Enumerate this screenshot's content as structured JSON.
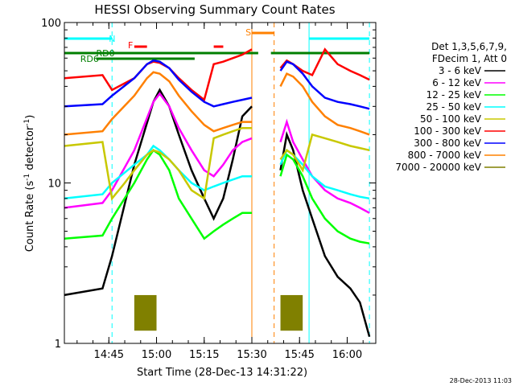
{
  "chart_data": {
    "type": "line",
    "title": "HESSI Observing Summary Count Rates",
    "xlabel": "Start Time (28-Dec-13 14:31:22)",
    "ylabel_main": "Count Rate (s",
    "ylabel_sup1": "-1",
    "ylabel_mid": " detector",
    "ylabel_sup2": "-1",
    "ylabel_end": ")",
    "yscale": "log",
    "ylim": [
      1,
      100
    ],
    "y_ticks": [
      "1",
      "10",
      "100"
    ],
    "xlim_minutes_after_1431": [
      0,
      98
    ],
    "x_ticks": [
      {
        "label": "14:45",
        "m": 14
      },
      {
        "label": "15:00",
        "m": 29
      },
      {
        "label": "15:15",
        "m": 44
      },
      {
        "label": "15:30",
        "m": 59
      },
      {
        "label": "15:45",
        "m": 74
      },
      {
        "label": "16:00",
        "m": 89
      }
    ],
    "timestamp": "28-Dec-2013 11:03",
    "legend": {
      "header": [
        "Det 1,3,5,6,7,9,",
        "FDecim 1, Att 0"
      ],
      "entries": [
        {
          "label": "3 - 6 keV",
          "color": "#000000"
        },
        {
          "label": "6 - 12 keV",
          "color": "#ff00ff"
        },
        {
          "label": "12 - 25 keV",
          "color": "#00ff00"
        },
        {
          "label": "25 - 50 keV",
          "color": "#00ffff"
        },
        {
          "label": "50 - 100 keV",
          "color": "#c8c800"
        },
        {
          "label": "100 - 300 keV",
          "color": "#ff0000"
        },
        {
          "label": "300 - 800 keV",
          "color": "#0000ff"
        },
        {
          "label": "800 - 7000 keV",
          "color": "#ff8000"
        },
        {
          "label": "7000 - 20000 keV",
          "color": "#808000"
        }
      ]
    },
    "flags": [
      {
        "label": "N",
        "color": "#00ffff",
        "segments": [
          [
            0,
            15
          ],
          [
            77,
            96
          ]
        ]
      },
      {
        "label": "RD0",
        "color": "#007f00",
        "segments": [
          [
            0,
            61
          ],
          [
            65,
            96
          ]
        ]
      },
      {
        "label": "RD6",
        "color": "#007f00",
        "segments": [
          [
            10,
            41
          ]
        ]
      },
      {
        "label": "F",
        "color": "#ff0000",
        "segments": [
          [
            22,
            26
          ],
          [
            47,
            50
          ]
        ]
      },
      {
        "label": "S",
        "color": "#ff8000",
        "segments": [
          [
            59,
            66
          ]
        ]
      }
    ],
    "vlines": [
      {
        "m": 15,
        "color": "#00ffff",
        "dash": true
      },
      {
        "m": 77,
        "color": "#00ffff",
        "dash": false
      },
      {
        "m": 96,
        "color": "#00ffff",
        "dash": true
      },
      {
        "m": 59,
        "color": "#ff8000",
        "dash": false
      },
      {
        "m": 66,
        "color": "#ff8000",
        "dash": true
      }
    ],
    "segments": [
      [
        0,
        59
      ],
      [
        68,
        96
      ]
    ],
    "series": [
      {
        "name": "3 - 6 keV",
        "color": "#000000",
        "values": [
          [
            0,
            2
          ],
          [
            12,
            2.2
          ],
          [
            15,
            3.5
          ],
          [
            22,
            13
          ],
          [
            28,
            32
          ],
          [
            30,
            38
          ],
          [
            33,
            30
          ],
          [
            36,
            20
          ],
          [
            40,
            12
          ],
          [
            44,
            8
          ],
          [
            47,
            6
          ],
          [
            50,
            8
          ],
          [
            53,
            14
          ],
          [
            56,
            26
          ],
          [
            59,
            30
          ],
          [
            68,
            12
          ],
          [
            70,
            20
          ],
          [
            72,
            16
          ],
          [
            75,
            9
          ],
          [
            78,
            6
          ],
          [
            82,
            3.5
          ],
          [
            86,
            2.6
          ],
          [
            90,
            2.2
          ],
          [
            93,
            1.8
          ],
          [
            96,
            1.1
          ]
        ]
      },
      {
        "name": "6 - 12 keV",
        "color": "#ff00ff",
        "values": [
          [
            0,
            7
          ],
          [
            12,
            7.5
          ],
          [
            15,
            9
          ],
          [
            22,
            16
          ],
          [
            28,
            32
          ],
          [
            30,
            36
          ],
          [
            33,
            30
          ],
          [
            36,
            22
          ],
          [
            40,
            16
          ],
          [
            44,
            12
          ],
          [
            47,
            11
          ],
          [
            50,
            13
          ],
          [
            53,
            16
          ],
          [
            56,
            18
          ],
          [
            59,
            19
          ],
          [
            68,
            18
          ],
          [
            70,
            24
          ],
          [
            72,
            18
          ],
          [
            75,
            14
          ],
          [
            78,
            11
          ],
          [
            82,
            9
          ],
          [
            86,
            8
          ],
          [
            90,
            7.5
          ],
          [
            93,
            7
          ],
          [
            96,
            6.5
          ]
        ]
      },
      {
        "name": "12 - 25 keV",
        "color": "#00ff00",
        "values": [
          [
            0,
            4.5
          ],
          [
            12,
            4.7
          ],
          [
            15,
            6
          ],
          [
            22,
            10
          ],
          [
            26,
            14
          ],
          [
            28,
            16
          ],
          [
            30,
            15
          ],
          [
            33,
            12
          ],
          [
            36,
            8
          ],
          [
            40,
            6
          ],
          [
            44,
            4.5
          ],
          [
            47,
            5
          ],
          [
            50,
            5.5
          ],
          [
            53,
            6
          ],
          [
            56,
            6.5
          ],
          [
            59,
            6.5
          ],
          [
            68,
            11
          ],
          [
            70,
            15
          ],
          [
            72,
            14
          ],
          [
            75,
            11
          ],
          [
            78,
            8
          ],
          [
            82,
            6
          ],
          [
            86,
            5
          ],
          [
            90,
            4.5
          ],
          [
            93,
            4.3
          ],
          [
            96,
            4.2
          ]
        ]
      },
      {
        "name": "25 - 50 keV",
        "color": "#00ffff",
        "values": [
          [
            0,
            8
          ],
          [
            12,
            8.5
          ],
          [
            15,
            10
          ],
          [
            22,
            13
          ],
          [
            26,
            15
          ],
          [
            28,
            17
          ],
          [
            30,
            16
          ],
          [
            33,
            14
          ],
          [
            36,
            12
          ],
          [
            40,
            10
          ],
          [
            44,
            9
          ],
          [
            47,
            9.5
          ],
          [
            50,
            10
          ],
          [
            53,
            10.5
          ],
          [
            56,
            11
          ],
          [
            59,
            11
          ],
          [
            68,
            13
          ],
          [
            70,
            16
          ],
          [
            72,
            15
          ],
          [
            75,
            13
          ],
          [
            78,
            11
          ],
          [
            82,
            9.5
          ],
          [
            86,
            9
          ],
          [
            90,
            8.5
          ],
          [
            93,
            8.2
          ],
          [
            96,
            8
          ]
        ]
      },
      {
        "name": "50 - 100 keV",
        "color": "#c8c800",
        "values": [
          [
            0,
            17
          ],
          [
            12,
            18
          ],
          [
            15,
            8
          ],
          [
            19,
            10
          ],
          [
            22,
            12
          ],
          [
            26,
            15
          ],
          [
            28,
            16
          ],
          [
            30,
            15.5
          ],
          [
            33,
            14
          ],
          [
            36,
            12
          ],
          [
            40,
            9
          ],
          [
            44,
            8
          ],
          [
            47,
            19
          ],
          [
            50,
            20
          ],
          [
            53,
            21
          ],
          [
            56,
            22
          ],
          [
            59,
            22
          ],
          [
            68,
            14
          ],
          [
            70,
            16
          ],
          [
            72,
            15
          ],
          [
            75,
            12
          ],
          [
            78,
            20
          ],
          [
            82,
            19
          ],
          [
            86,
            18
          ],
          [
            90,
            17
          ],
          [
            93,
            16.5
          ],
          [
            96,
            16
          ]
        ]
      },
      {
        "name": "100 - 300 keV",
        "color": "#ff0000",
        "values": [
          [
            0,
            45
          ],
          [
            12,
            47
          ],
          [
            15,
            38
          ],
          [
            22,
            45
          ],
          [
            26,
            55
          ],
          [
            28,
            57
          ],
          [
            30,
            56
          ],
          [
            33,
            52
          ],
          [
            36,
            45
          ],
          [
            40,
            38
          ],
          [
            44,
            33
          ],
          [
            47,
            55
          ],
          [
            50,
            57
          ],
          [
            53,
            60
          ],
          [
            56,
            63
          ],
          [
            59,
            68
          ],
          [
            68,
            52
          ],
          [
            70,
            58
          ],
          [
            72,
            55
          ],
          [
            75,
            50
          ],
          [
            78,
            47
          ],
          [
            82,
            68
          ],
          [
            86,
            55
          ],
          [
            90,
            50
          ],
          [
            93,
            47
          ],
          [
            96,
            44
          ]
        ]
      },
      {
        "name": "300 - 800 keV",
        "color": "#0000ff",
        "values": [
          [
            0,
            30
          ],
          [
            12,
            31
          ],
          [
            15,
            35
          ],
          [
            22,
            45
          ],
          [
            26,
            55
          ],
          [
            28,
            58
          ],
          [
            30,
            57
          ],
          [
            33,
            52
          ],
          [
            36,
            44
          ],
          [
            40,
            37
          ],
          [
            44,
            32
          ],
          [
            47,
            30
          ],
          [
            50,
            31
          ],
          [
            53,
            32
          ],
          [
            56,
            33
          ],
          [
            59,
            34
          ],
          [
            68,
            50
          ],
          [
            70,
            57
          ],
          [
            72,
            55
          ],
          [
            75,
            48
          ],
          [
            78,
            40
          ],
          [
            82,
            34
          ],
          [
            86,
            32
          ],
          [
            90,
            31
          ],
          [
            93,
            30
          ],
          [
            96,
            29
          ]
        ]
      },
      {
        "name": "800 - 7000 keV",
        "color": "#ff8000",
        "values": [
          [
            0,
            20
          ],
          [
            12,
            21
          ],
          [
            15,
            25
          ],
          [
            22,
            35
          ],
          [
            26,
            45
          ],
          [
            28,
            49
          ],
          [
            30,
            48
          ],
          [
            33,
            43
          ],
          [
            36,
            35
          ],
          [
            40,
            28
          ],
          [
            44,
            23
          ],
          [
            47,
            21
          ],
          [
            50,
            22
          ],
          [
            53,
            23
          ],
          [
            56,
            24
          ],
          [
            59,
            24
          ],
          [
            68,
            40
          ],
          [
            70,
            48
          ],
          [
            72,
            46
          ],
          [
            75,
            40
          ],
          [
            78,
            32
          ],
          [
            82,
            26
          ],
          [
            86,
            23
          ],
          [
            90,
            22
          ],
          [
            93,
            21
          ],
          [
            96,
            20
          ]
        ]
      },
      {
        "name": "7000 - 20000 keV",
        "color": "#808000",
        "values": [
          [
            22,
            1.2
          ],
          [
            22.2,
            2
          ],
          [
            29,
            2
          ],
          [
            29.2,
            1.2
          ],
          [
            68,
            1.2
          ],
          [
            68.2,
            2
          ],
          [
            75,
            2
          ],
          [
            75.2,
            1.2
          ]
        ]
      }
    ]
  }
}
